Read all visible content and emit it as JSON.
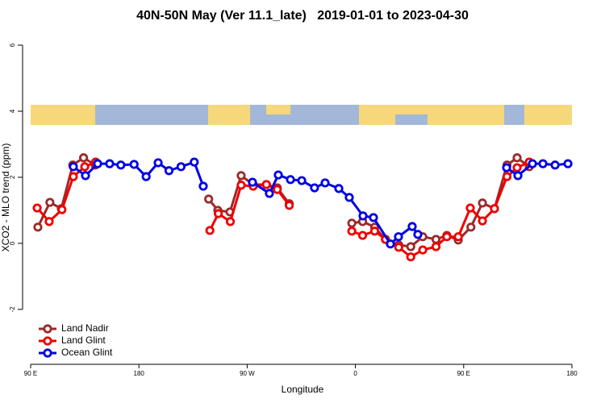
{
  "chart_data": {
    "type": "line",
    "title": "40N-50N May (Ver 11.1_late)   2019-01-01 to 2023-04-30",
    "xlabel": "Longitude",
    "ylabel": "XCO2 - MLO trend (ppm)",
    "xlim": [
      90,
      540
    ],
    "ylim": [
      -3.98,
      6.44
    ],
    "xticks": [
      {
        "value": 90,
        "label": "90 E"
      },
      180,
      {
        "value": 270,
        "label": "90 W"
      },
      {
        "value": 360,
        "label": "0"
      },
      {
        "value": 450,
        "label": "90 E"
      },
      {
        "value": 540,
        "label": "180"
      }
    ],
    "yticks": [
      -2,
      0,
      2,
      4,
      6
    ],
    "legend": "bottom-left",
    "series": [
      {
        "name": "Land Nadir",
        "color": "#9b2a2a",
        "x": [
          96,
          106,
          115.5,
          125,
          134,
          143.7,
          null,
          238,
          245.6,
          255.7,
          265,
          275,
          286,
          295,
          305,
          null,
          357,
          366,
          376,
          385,
          396,
          406,
          416,
          427,
          436,
          445.5,
          456,
          465.6,
          475.6,
          486,
          494.4,
          504.5
        ],
        "values": [
          0.49,
          1.24,
          1.05,
          2.37,
          2.59,
          2.37,
          null,
          1.34,
          1.0,
          0.95,
          2.05,
          1.78,
          1.78,
          1.68,
          1.2,
          null,
          0.61,
          0.66,
          0.49,
          0.12,
          -0.05,
          -0.1,
          0.2,
          0.12,
          0.24,
          0.1,
          0.49,
          1.22,
          1.05,
          2.37,
          2.59,
          2.32
        ]
      },
      {
        "name": "Land Glint",
        "color": "#ee0000",
        "x": [
          95.4,
          105.4,
          116,
          125.5,
          135,
          144,
          null,
          239,
          246,
          256,
          265,
          275,
          286,
          295,
          305,
          null,
          357,
          366,
          376,
          385,
          396,
          406,
          416,
          427,
          436,
          445.5,
          455.5,
          465.6,
          475.6,
          486,
          494.4,
          504.5
        ],
        "values": [
          1.07,
          0.66,
          1.02,
          2.02,
          2.32,
          2.46,
          null,
          0.39,
          0.9,
          0.66,
          1.76,
          1.73,
          1.78,
          1.63,
          1.15,
          null,
          0.37,
          0.24,
          0.37,
          0.12,
          -0.12,
          -0.41,
          -0.2,
          -0.1,
          0.2,
          0.2,
          1.07,
          0.68,
          1.05,
          2.02,
          2.29,
          2.46
        ]
      },
      {
        "name": "Ocean Glint",
        "color": "#0000e6",
        "x": [
          125.5,
          135.6,
          145.7,
          155.7,
          165,
          176,
          186,
          196,
          205,
          215,
          226,
          233.5,
          null,
          274.4,
          288.5,
          295.9,
          306,
          315.4,
          326,
          334.8,
          346.2,
          354.9,
          366.3,
          375,
          389.1,
          395.8,
          407.2,
          411.9,
          null,
          485.7,
          495.1,
          507.2,
          515.9,
          526,
          536.7
        ],
        "values": [
          2.32,
          2.05,
          2.41,
          2.41,
          2.37,
          2.39,
          2.02,
          2.44,
          2.2,
          2.32,
          2.46,
          1.73,
          null,
          1.85,
          1.51,
          2.07,
          1.93,
          1.9,
          1.68,
          1.83,
          1.66,
          1.39,
          0.83,
          0.78,
          -0.02,
          0.2,
          0.51,
          0.27,
          null,
          2.29,
          2.05,
          2.41,
          2.41,
          2.37,
          2.41
        ]
      }
    ]
  }
}
